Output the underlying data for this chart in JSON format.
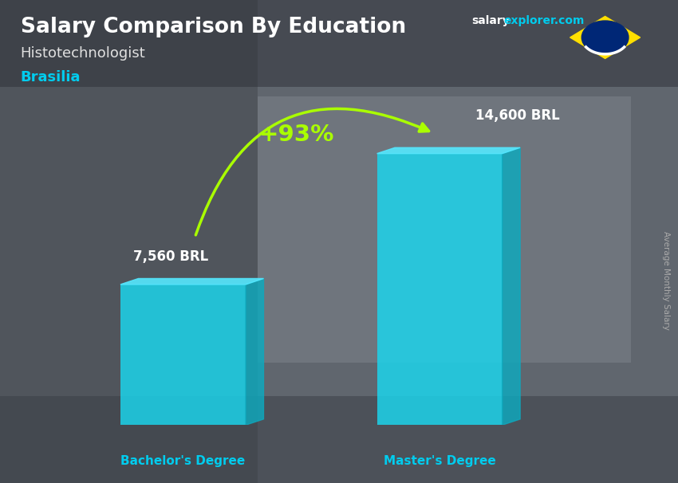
{
  "title": "Salary Comparison By Education",
  "subtitle": "Histotechnologist",
  "city": "Brasilia",
  "watermark_salary": "salary",
  "watermark_explorer": "explorer.com",
  "ylabel": "Average Monthly Salary",
  "categories": [
    "Bachelor's Degree",
    "Master's Degree"
  ],
  "values": [
    7560,
    14600
  ],
  "labels": [
    "7,560 BRL",
    "14,600 BRL"
  ],
  "pct_change": "+93%",
  "bar_color_face": "#1ad8f0",
  "bar_color_dark": "#0daabf",
  "bar_color_top": "#55e8ff",
  "bg_color": "#5a6070",
  "bg_left_color": "#3a3f48",
  "title_color": "#ffffff",
  "subtitle_color": "#e0e0e0",
  "city_color": "#00ccee",
  "label_color": "#ffffff",
  "xticklabel_color": "#00ccee",
  "pct_color": "#aaff00",
  "arrow_color": "#aaff00",
  "watermark_white_color": "#ffffff",
  "watermark_cyan_color": "#00ccee",
  "right_label_color": "#aaaaaa",
  "flag_green": "#009c3b",
  "flag_yellow": "#FFDF00",
  "flag_blue": "#002776"
}
